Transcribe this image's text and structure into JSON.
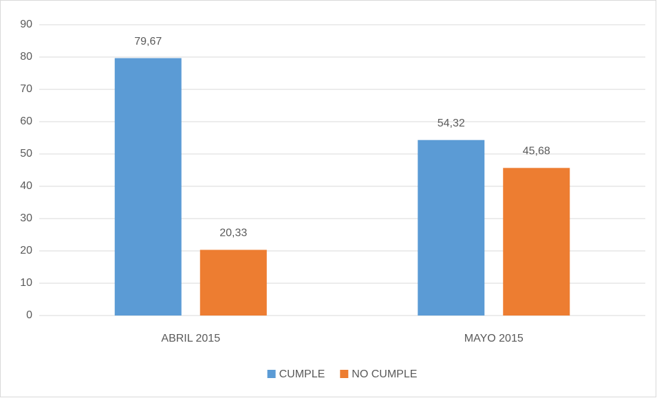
{
  "chart_data": {
    "type": "bar",
    "categories": [
      "ABRIL 2015",
      "MAYO 2015"
    ],
    "series": [
      {
        "name": "CUMPLE",
        "color": "#5b9bd5",
        "values": [
          79.67,
          54.32
        ],
        "value_labels": [
          "79,67",
          "54,32"
        ]
      },
      {
        "name": "NO CUMPLE",
        "color": "#ed7d31",
        "values": [
          20.33,
          45.68
        ],
        "value_labels": [
          "20,33",
          "45,68"
        ]
      }
    ],
    "ylim": [
      0,
      90
    ],
    "yticks": [
      0,
      10,
      20,
      30,
      40,
      50,
      60,
      70,
      80,
      90
    ],
    "grid": true,
    "legend": "bottom"
  }
}
